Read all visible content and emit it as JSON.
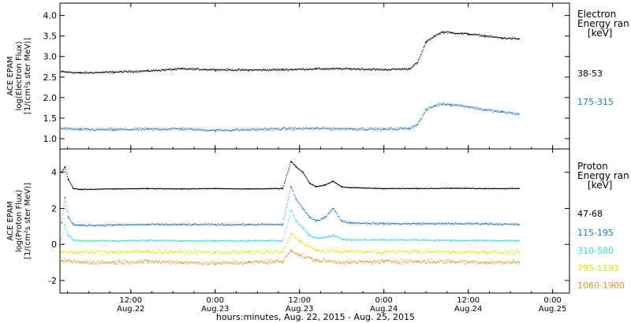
{
  "figure": {
    "xlabel": "hours:minutes, Aug. 22, 2015 - Aug. 25, 2015",
    "x_ticks": [
      {
        "t": 0.5,
        "label": "12:00",
        "sub": "Aug.22"
      },
      {
        "t": 1.0,
        "label": "0:00",
        "sub": "Aug.23"
      },
      {
        "t": 1.5,
        "label": "12:00",
        "sub": "Aug.23"
      },
      {
        "t": 2.0,
        "label": "0:00",
        "sub": "Aug.24"
      },
      {
        "t": 2.5,
        "label": "12:00",
        "sub": "Aug.24"
      },
      {
        "t": 3.0,
        "label": "0:00",
        "sub": "Aug.25"
      }
    ]
  },
  "chart_data": [
    {
      "type": "scatter",
      "panel": "electron",
      "ylabel": [
        "ACE EPAM",
        "log(Electron Flux)",
        "[1/(cm²s ster MeV)]"
      ],
      "legend_title": [
        "Electron",
        "Energy ran",
        "[keV]"
      ],
      "x_unit": "days since Aug. 22, 2015 00:00",
      "xlim": [
        0.08,
        3.1
      ],
      "ylim": [
        0.75,
        4.3
      ],
      "yticks": [
        1.0,
        1.5,
        2.0,
        2.5,
        3.0,
        3.5,
        4.0
      ],
      "ytick_labels": [
        "1.0",
        "1.5",
        "2.0",
        "2.5",
        "3.0",
        "3.5",
        "4.0"
      ],
      "series": [
        {
          "name": "38-53",
          "color": "#000000",
          "x": [
            0.09,
            0.2,
            0.4,
            0.6,
            0.8,
            1.0,
            1.2,
            1.4,
            1.6,
            1.8,
            2.0,
            2.15,
            2.2,
            2.25,
            2.3,
            2.35,
            2.4,
            2.5,
            2.6,
            2.7,
            2.8
          ],
          "y": [
            2.63,
            2.6,
            2.62,
            2.65,
            2.7,
            2.68,
            2.67,
            2.68,
            2.7,
            2.7,
            2.68,
            2.7,
            2.85,
            3.35,
            3.5,
            3.6,
            3.58,
            3.55,
            3.5,
            3.45,
            3.43
          ]
        },
        {
          "name": "175-315",
          "color": "#1e78c8",
          "x": [
            0.09,
            0.2,
            0.4,
            0.6,
            0.8,
            1.0,
            1.2,
            1.4,
            1.6,
            1.8,
            2.0,
            2.15,
            2.2,
            2.25,
            2.3,
            2.35,
            2.4,
            2.5,
            2.6,
            2.7,
            2.8
          ],
          "y": [
            1.25,
            1.22,
            1.22,
            1.23,
            1.24,
            1.2,
            1.22,
            1.24,
            1.25,
            1.24,
            1.23,
            1.25,
            1.35,
            1.7,
            1.8,
            1.85,
            1.83,
            1.78,
            1.7,
            1.65,
            1.6
          ]
        }
      ]
    },
    {
      "type": "scatter",
      "panel": "proton",
      "ylabel": [
        "ACE EPAM",
        "log(Proton Flux)",
        "[1/(cm²s ster MeV)]"
      ],
      "legend_title": [
        "Proton",
        "Energy ran",
        "[keV]"
      ],
      "x_unit": "days since Aug. 22, 2015 00:00",
      "xlim": [
        0.08,
        3.1
      ],
      "ylim": [
        -2.7,
        5.3
      ],
      "yticks": [
        -2,
        0,
        2,
        4
      ],
      "ytick_labels": [
        "-2",
        "0",
        "2",
        "4"
      ],
      "series": [
        {
          "name": "47-68",
          "color": "#000000",
          "x": [
            0.09,
            0.11,
            0.13,
            0.16,
            0.2,
            0.4,
            0.6,
            0.8,
            1.0,
            1.2,
            1.4,
            1.45,
            1.48,
            1.52,
            1.56,
            1.6,
            1.65,
            1.7,
            1.75,
            1.8,
            2.0,
            2.2,
            2.4,
            2.6,
            2.8
          ],
          "y": [
            4.0,
            4.3,
            3.6,
            3.1,
            3.05,
            3.08,
            3.1,
            3.08,
            3.1,
            3.08,
            3.1,
            4.6,
            4.3,
            4.0,
            3.4,
            3.2,
            3.3,
            3.5,
            3.2,
            3.15,
            3.1,
            3.1,
            3.12,
            3.1,
            3.1
          ]
        },
        {
          "name": "115-195",
          "color": "#1e78c8",
          "x": [
            0.09,
            0.11,
            0.13,
            0.16,
            0.2,
            0.4,
            0.6,
            0.8,
            1.0,
            1.2,
            1.4,
            1.45,
            1.48,
            1.52,
            1.56,
            1.6,
            1.65,
            1.7,
            1.75,
            1.8,
            2.0,
            2.2,
            2.4,
            2.6,
            2.8
          ],
          "y": [
            1.2,
            2.6,
            1.5,
            1.1,
            1.05,
            1.08,
            1.1,
            1.1,
            1.1,
            1.1,
            1.1,
            3.2,
            2.5,
            2.0,
            1.5,
            1.3,
            1.5,
            2.0,
            1.3,
            1.2,
            1.15,
            1.15,
            1.15,
            1.15,
            1.1
          ]
        },
        {
          "name": "310-580",
          "color": "#33dddd",
          "x": [
            0.09,
            0.11,
            0.13,
            0.16,
            0.2,
            0.4,
            0.6,
            0.8,
            1.0,
            1.2,
            1.4,
            1.45,
            1.48,
            1.52,
            1.56,
            1.6,
            1.65,
            1.7,
            1.75,
            1.8,
            2.0,
            2.2,
            2.4,
            2.6,
            2.8
          ],
          "y": [
            0.3,
            1.1,
            0.5,
            0.25,
            0.2,
            0.2,
            0.22,
            0.2,
            0.2,
            0.2,
            0.2,
            1.9,
            1.3,
            0.9,
            0.5,
            0.35,
            0.4,
            0.5,
            0.3,
            0.25,
            0.25,
            0.25,
            0.22,
            0.22,
            0.2
          ]
        },
        {
          "name": "795-1193",
          "color": "#e0e000",
          "x": [
            0.09,
            0.2,
            0.4,
            0.6,
            0.8,
            1.0,
            1.2,
            1.4,
            1.45,
            1.5,
            1.6,
            1.8,
            2.0,
            2.2,
            2.4,
            2.6,
            2.8
          ],
          "y": [
            -0.4,
            -0.45,
            -0.42,
            -0.4,
            -0.42,
            -0.45,
            -0.42,
            -0.42,
            0.6,
            0.2,
            -0.35,
            -0.4,
            -0.42,
            -0.4,
            -0.42,
            -0.42,
            -0.45
          ]
        },
        {
          "name": "1060-1900",
          "color": "#e8901e",
          "x": [
            0.09,
            0.2,
            0.4,
            0.6,
            0.8,
            1.0,
            1.2,
            1.4,
            1.45,
            1.5,
            1.6,
            1.8,
            2.0,
            2.2,
            2.4,
            2.6,
            2.8
          ],
          "y": [
            -0.9,
            -1.0,
            -1.0,
            -0.95,
            -1.0,
            -1.05,
            -1.0,
            -0.95,
            -0.3,
            -0.6,
            -0.9,
            -1.0,
            -0.95,
            -0.95,
            -0.95,
            -1.0,
            -1.0
          ]
        }
      ]
    }
  ]
}
